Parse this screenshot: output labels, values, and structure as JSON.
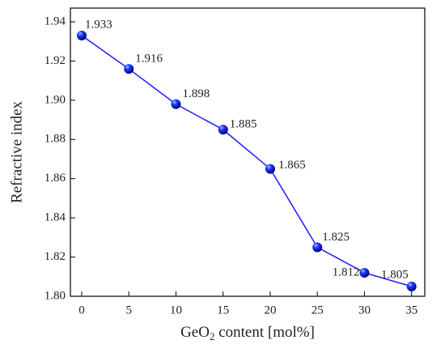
{
  "chart_data": {
    "type": "line",
    "xlabel": [
      "GeO",
      "2",
      " content [mol%]"
    ],
    "ylabel": "Refractive index",
    "x": [
      0,
      5,
      10,
      15,
      20,
      25,
      30,
      35
    ],
    "series": [
      {
        "name": null,
        "color": "#1a1aff",
        "values": [
          1.933,
          1.916,
          1.898,
          1.885,
          1.865,
          1.825,
          1.812,
          1.805
        ]
      }
    ],
    "xlim": [
      -1.2,
      36.4
    ],
    "ylim": [
      1.8,
      1.947
    ],
    "xticks": [
      0,
      5,
      10,
      15,
      20,
      25,
      30,
      35
    ],
    "yticks": [
      {
        "value": 1.8,
        "label": "1.80"
      },
      1.82,
      1.84,
      1.86,
      1.88,
      {
        "value": 1.9,
        "label": "1.90"
      },
      1.92,
      1.94
    ],
    "grid": false
  }
}
